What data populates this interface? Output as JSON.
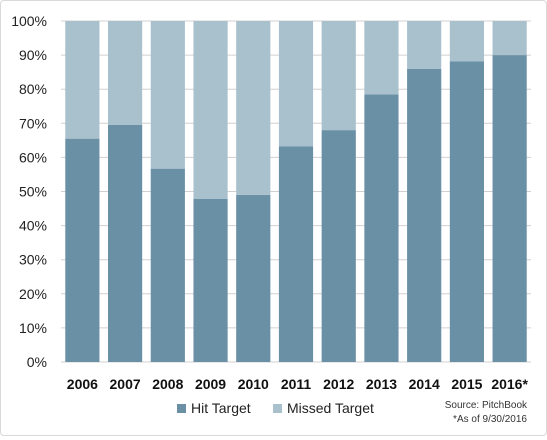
{
  "chart_data": {
    "type": "bar",
    "stacked": true,
    "categories": [
      "2006",
      "2007",
      "2008",
      "2009",
      "2010",
      "2011",
      "2012",
      "2013",
      "2014",
      "2015",
      "2016*"
    ],
    "series": [
      {
        "name": "Hit Target",
        "color": "#6990a5",
        "values": [
          65.5,
          69.5,
          56.7,
          47.8,
          49,
          63.2,
          68,
          78.5,
          86,
          88.2,
          90
        ]
      },
      {
        "name": "Missed Target",
        "color": "#a9c0cd",
        "values": [
          34.5,
          30.5,
          43.3,
          52.2,
          51,
          36.8,
          32,
          21.5,
          14,
          11.8,
          10
        ]
      }
    ],
    "ylim": [
      0,
      100
    ],
    "ytick_labels": [
      "0%",
      "10%",
      "20%",
      "30%",
      "40%",
      "50%",
      "60%",
      "70%",
      "80%",
      "90%",
      "100%"
    ],
    "grid": true,
    "legend_position": "bottom-center",
    "annotations": [
      "Source: PitchBook",
      "*As of 9/30/2016"
    ]
  }
}
